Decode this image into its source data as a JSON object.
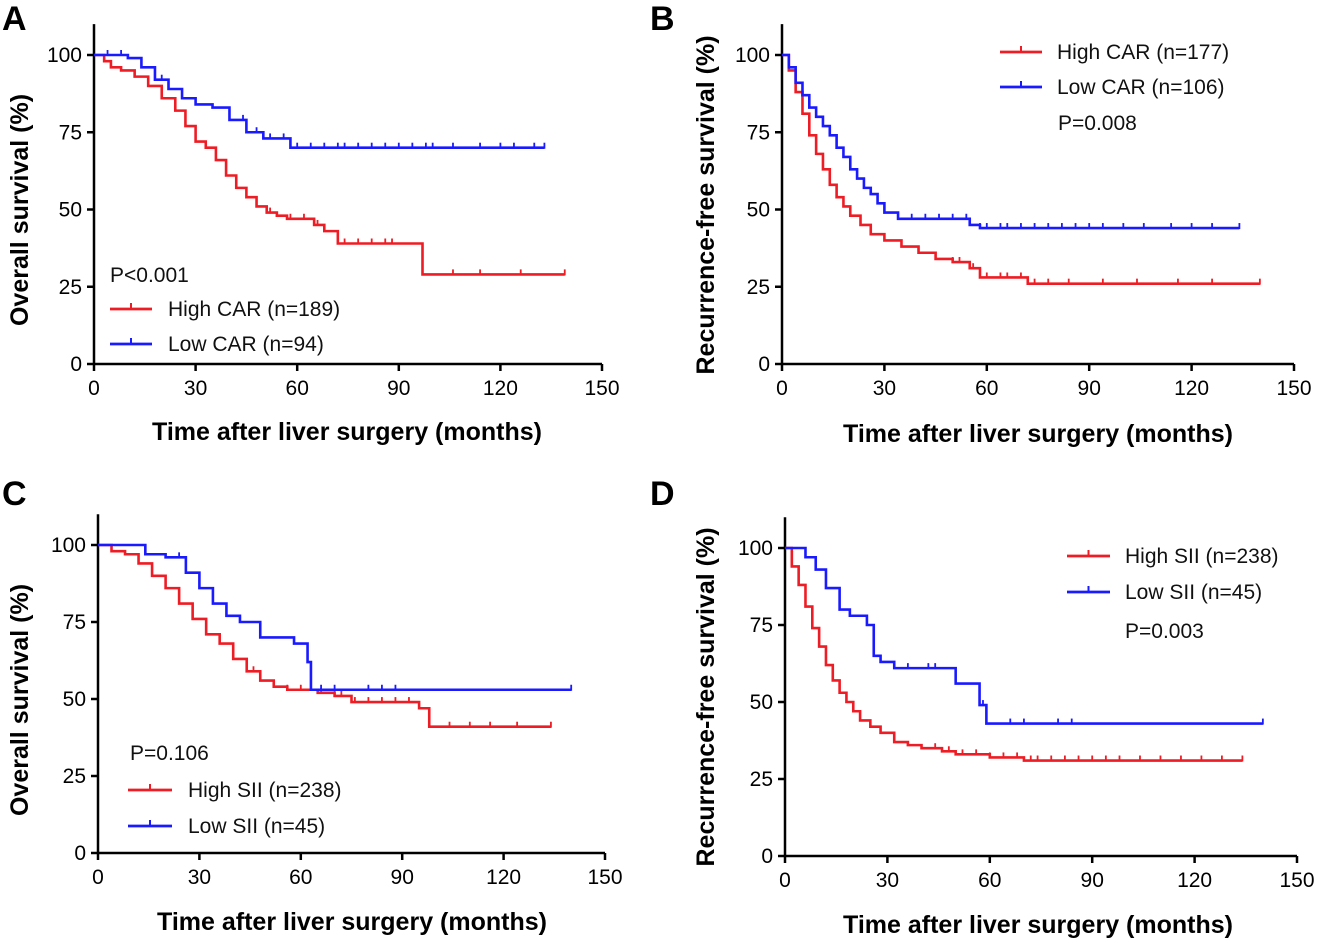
{
  "chart_data": [
    {
      "panel": "A",
      "type": "line",
      "subtype": "kaplan-meier",
      "xlabel": "Time after liver surgery (months)",
      "ylabel": "Overall survival (%)",
      "xlim": [
        0,
        150
      ],
      "ylim": [
        0,
        110
      ],
      "xticks": [
        0,
        30,
        60,
        90,
        120,
        150
      ],
      "yticks": [
        0,
        25,
        50,
        75,
        100
      ],
      "pvalue": "P<0.001",
      "legend_position": "bottom-left",
      "series": [
        {
          "name": "High CAR (n=189)",
          "color": "#ee1c24",
          "x": [
            0,
            3,
            5,
            8,
            12,
            16,
            20,
            24,
            27,
            30,
            33,
            36,
            39,
            42,
            45,
            48,
            51,
            54,
            57,
            60,
            65,
            68,
            72,
            80,
            84,
            90,
            95,
            97,
            100,
            110,
            120,
            130,
            139
          ],
          "y": [
            100,
            98,
            96,
            95,
            93,
            90,
            86,
            82,
            77,
            72,
            70,
            66,
            61,
            57,
            54,
            51,
            49,
            48,
            47,
            47,
            45,
            43,
            39,
            39,
            39,
            39,
            39,
            29,
            29,
            29,
            29,
            29,
            29
          ],
          "censored_x": [
            52,
            58,
            62,
            66,
            74,
            78,
            82,
            86,
            88,
            106,
            114,
            126,
            139
          ]
        },
        {
          "name": "Low CAR (n=94)",
          "color": "#1a1aff",
          "x": [
            0,
            5,
            10,
            14,
            18,
            22,
            26,
            30,
            35,
            40,
            45,
            50,
            55,
            58,
            62,
            70,
            80,
            90,
            100,
            110,
            120,
            133
          ],
          "y": [
            100,
            100,
            99,
            96,
            92,
            89,
            86,
            84,
            83,
            79,
            75,
            73,
            73,
            70,
            70,
            70,
            70,
            70,
            70,
            70,
            70,
            70
          ],
          "censored_x": [
            4,
            8,
            20,
            30,
            44,
            48,
            52,
            56,
            60,
            64,
            68,
            72,
            74,
            78,
            82,
            86,
            90,
            94,
            98,
            100,
            106,
            114,
            120,
            124,
            130,
            133
          ]
        }
      ]
    },
    {
      "panel": "B",
      "type": "line",
      "subtype": "kaplan-meier",
      "xlabel": "Time after liver surgery (months)",
      "ylabel": "Recurrence-free survival (%)",
      "xlim": [
        0,
        150
      ],
      "ylim": [
        0,
        110
      ],
      "xticks": [
        0,
        30,
        60,
        90,
        120,
        150
      ],
      "yticks": [
        0,
        25,
        50,
        75,
        100
      ],
      "pvalue": "P=0.008",
      "legend_position": "top-right",
      "series": [
        {
          "name": "High CAR (n=177)",
          "color": "#ee1c24",
          "x": [
            0,
            2,
            4,
            6,
            8,
            10,
            12,
            14,
            16,
            18,
            20,
            23,
            26,
            30,
            35,
            40,
            45,
            50,
            55,
            58,
            62,
            72,
            80,
            90,
            100,
            110,
            120,
            130,
            140
          ],
          "y": [
            100,
            95,
            88,
            81,
            74,
            68,
            63,
            58,
            54,
            51,
            48,
            45,
            42,
            40,
            38,
            36,
            34,
            33,
            31,
            28,
            28,
            26,
            26,
            26,
            26,
            26,
            26,
            26,
            26
          ],
          "censored_x": [
            45,
            50,
            52,
            56,
            60,
            64,
            66,
            70,
            74,
            78,
            84,
            94,
            104,
            116,
            126,
            140
          ]
        },
        {
          "name": "Low CAR (n=106)",
          "color": "#1a1aff",
          "x": [
            0,
            2,
            4,
            6,
            8,
            10,
            12,
            14,
            16,
            18,
            20,
            22,
            24,
            26,
            28,
            30,
            34,
            40,
            45,
            55,
            58,
            65,
            80,
            100,
            120,
            134
          ],
          "y": [
            100,
            96,
            91,
            87,
            83,
            80,
            77,
            74,
            70,
            67,
            63,
            60,
            57,
            55,
            52,
            49,
            47,
            47,
            47,
            45,
            44,
            44,
            44,
            44,
            44,
            44
          ],
          "censored_x": [
            30,
            34,
            38,
            42,
            46,
            50,
            54,
            58,
            60,
            64,
            66,
            70,
            74,
            78,
            82,
            86,
            90,
            94,
            100,
            106,
            114,
            120,
            126,
            134
          ]
        }
      ]
    },
    {
      "panel": "C",
      "type": "line",
      "subtype": "kaplan-meier",
      "xlabel": "Time after liver surgery (months)",
      "ylabel": "Overall survival (%)",
      "xlim": [
        0,
        150
      ],
      "ylim": [
        0,
        110
      ],
      "xticks": [
        0,
        30,
        60,
        90,
        120,
        150
      ],
      "yticks": [
        0,
        25,
        50,
        75,
        100
      ],
      "pvalue": "P=0.106",
      "legend_position": "bottom-left",
      "series": [
        {
          "name": "High SII (n=238)",
          "color": "#ee1c24",
          "x": [
            0,
            4,
            8,
            12,
            16,
            20,
            24,
            28,
            32,
            36,
            40,
            44,
            48,
            52,
            56,
            60,
            65,
            70,
            75,
            80,
            90,
            95,
            98,
            105,
            115,
            125,
            134
          ],
          "y": [
            100,
            98,
            97,
            94,
            90,
            86,
            81,
            76,
            71,
            68,
            63,
            59,
            56,
            54,
            53,
            53,
            52,
            51,
            49,
            49,
            49,
            47,
            41,
            41,
            41,
            41,
            41
          ],
          "censored_x": [
            40,
            46,
            52,
            56,
            60,
            66,
            70,
            72,
            76,
            80,
            84,
            88,
            92,
            104,
            110,
            116,
            124,
            134
          ]
        },
        {
          "name": "Low SII (n=45)",
          "color": "#1a1aff",
          "x": [
            0,
            10,
            14,
            20,
            26,
            30,
            34,
            38,
            42,
            48,
            52,
            58,
            62,
            63,
            66,
            80,
            90,
            100,
            110,
            120,
            130,
            140
          ],
          "y": [
            100,
            100,
            97,
            96,
            91,
            86,
            81,
            77,
            75,
            70,
            70,
            68,
            62,
            53,
            53,
            53,
            53,
            53,
            53,
            53,
            53,
            53
          ],
          "censored_x": [
            24,
            38,
            42,
            48,
            66,
            70,
            80,
            84,
            88,
            140
          ]
        }
      ]
    },
    {
      "panel": "D",
      "type": "line",
      "subtype": "kaplan-meier",
      "xlabel": "Time after liver surgery (months)",
      "ylabel": "Recurrence-free survival (%)",
      "xlim": [
        0,
        150
      ],
      "ylim": [
        0,
        110
      ],
      "xticks": [
        0,
        30,
        60,
        90,
        120,
        150
      ],
      "yticks": [
        0,
        25,
        50,
        75,
        100
      ],
      "pvalue": "P=0.003",
      "legend_position": "top-right",
      "series": [
        {
          "name": "High SII (n=238)",
          "color": "#ee1c24",
          "x": [
            0,
            2,
            4,
            6,
            8,
            10,
            12,
            14,
            16,
            18,
            20,
            22,
            25,
            28,
            32,
            36,
            40,
            46,
            50,
            55,
            60,
            66,
            70,
            80,
            90,
            100,
            110,
            120,
            134
          ],
          "y": [
            100,
            94,
            88,
            81,
            74,
            68,
            62,
            57,
            53,
            50,
            47,
            44,
            42,
            40,
            37,
            36,
            35,
            34,
            33,
            33,
            32,
            32,
            31,
            31,
            31,
            31,
            31,
            31,
            31
          ],
          "censored_x": [
            44,
            48,
            52,
            56,
            60,
            64,
            68,
            72,
            74,
            78,
            82,
            86,
            90,
            94,
            98,
            104,
            110,
            116,
            122,
            128,
            134
          ]
        },
        {
          "name": "Low SII (n=45)",
          "color": "#1a1aff",
          "x": [
            0,
            4,
            6,
            9,
            12,
            16,
            19,
            24,
            26,
            28,
            32,
            36,
            48,
            50,
            57,
            59,
            60,
            70,
            80,
            90,
            100,
            120,
            140
          ],
          "y": [
            100,
            100,
            97,
            93,
            87,
            80,
            78,
            75,
            65,
            63,
            61,
            61,
            61,
            56,
            49,
            43,
            43,
            43,
            43,
            43,
            43,
            43,
            43
          ],
          "censored_x": [
            36,
            42,
            44,
            58,
            66,
            70,
            80,
            84,
            140
          ]
        }
      ]
    }
  ],
  "panels": {
    "A": {
      "letter": "A",
      "xlabel": "Time after liver surgery (months)",
      "ylabel": "Overall survival (%)",
      "pvalue": "P<0.001",
      "legend": [
        "High CAR (n=189)",
        "Low CAR (n=94)"
      ]
    },
    "B": {
      "letter": "B",
      "xlabel": "Time after liver surgery (months)",
      "ylabel": "Recurrence-free survival (%)",
      "pvalue": "P=0.008",
      "legend": [
        "High CAR (n=177)",
        "Low CAR (n=106)"
      ]
    },
    "C": {
      "letter": "C",
      "xlabel": "Time after liver surgery (months)",
      "ylabel": "Overall survival (%)",
      "pvalue": "P=0.106",
      "legend": [
        "High SII (n=238)",
        "Low SII (n=45)"
      ]
    },
    "D": {
      "letter": "D",
      "xlabel": "Time after liver surgery (months)",
      "ylabel": "Recurrence-free survival (%)",
      "pvalue": "P=0.003",
      "legend": [
        "High SII (n=238)",
        "Low SII (n=45)"
      ]
    }
  },
  "colors": {
    "high": "#ee1c24",
    "low": "#1a1aff",
    "axis": "#000000"
  }
}
